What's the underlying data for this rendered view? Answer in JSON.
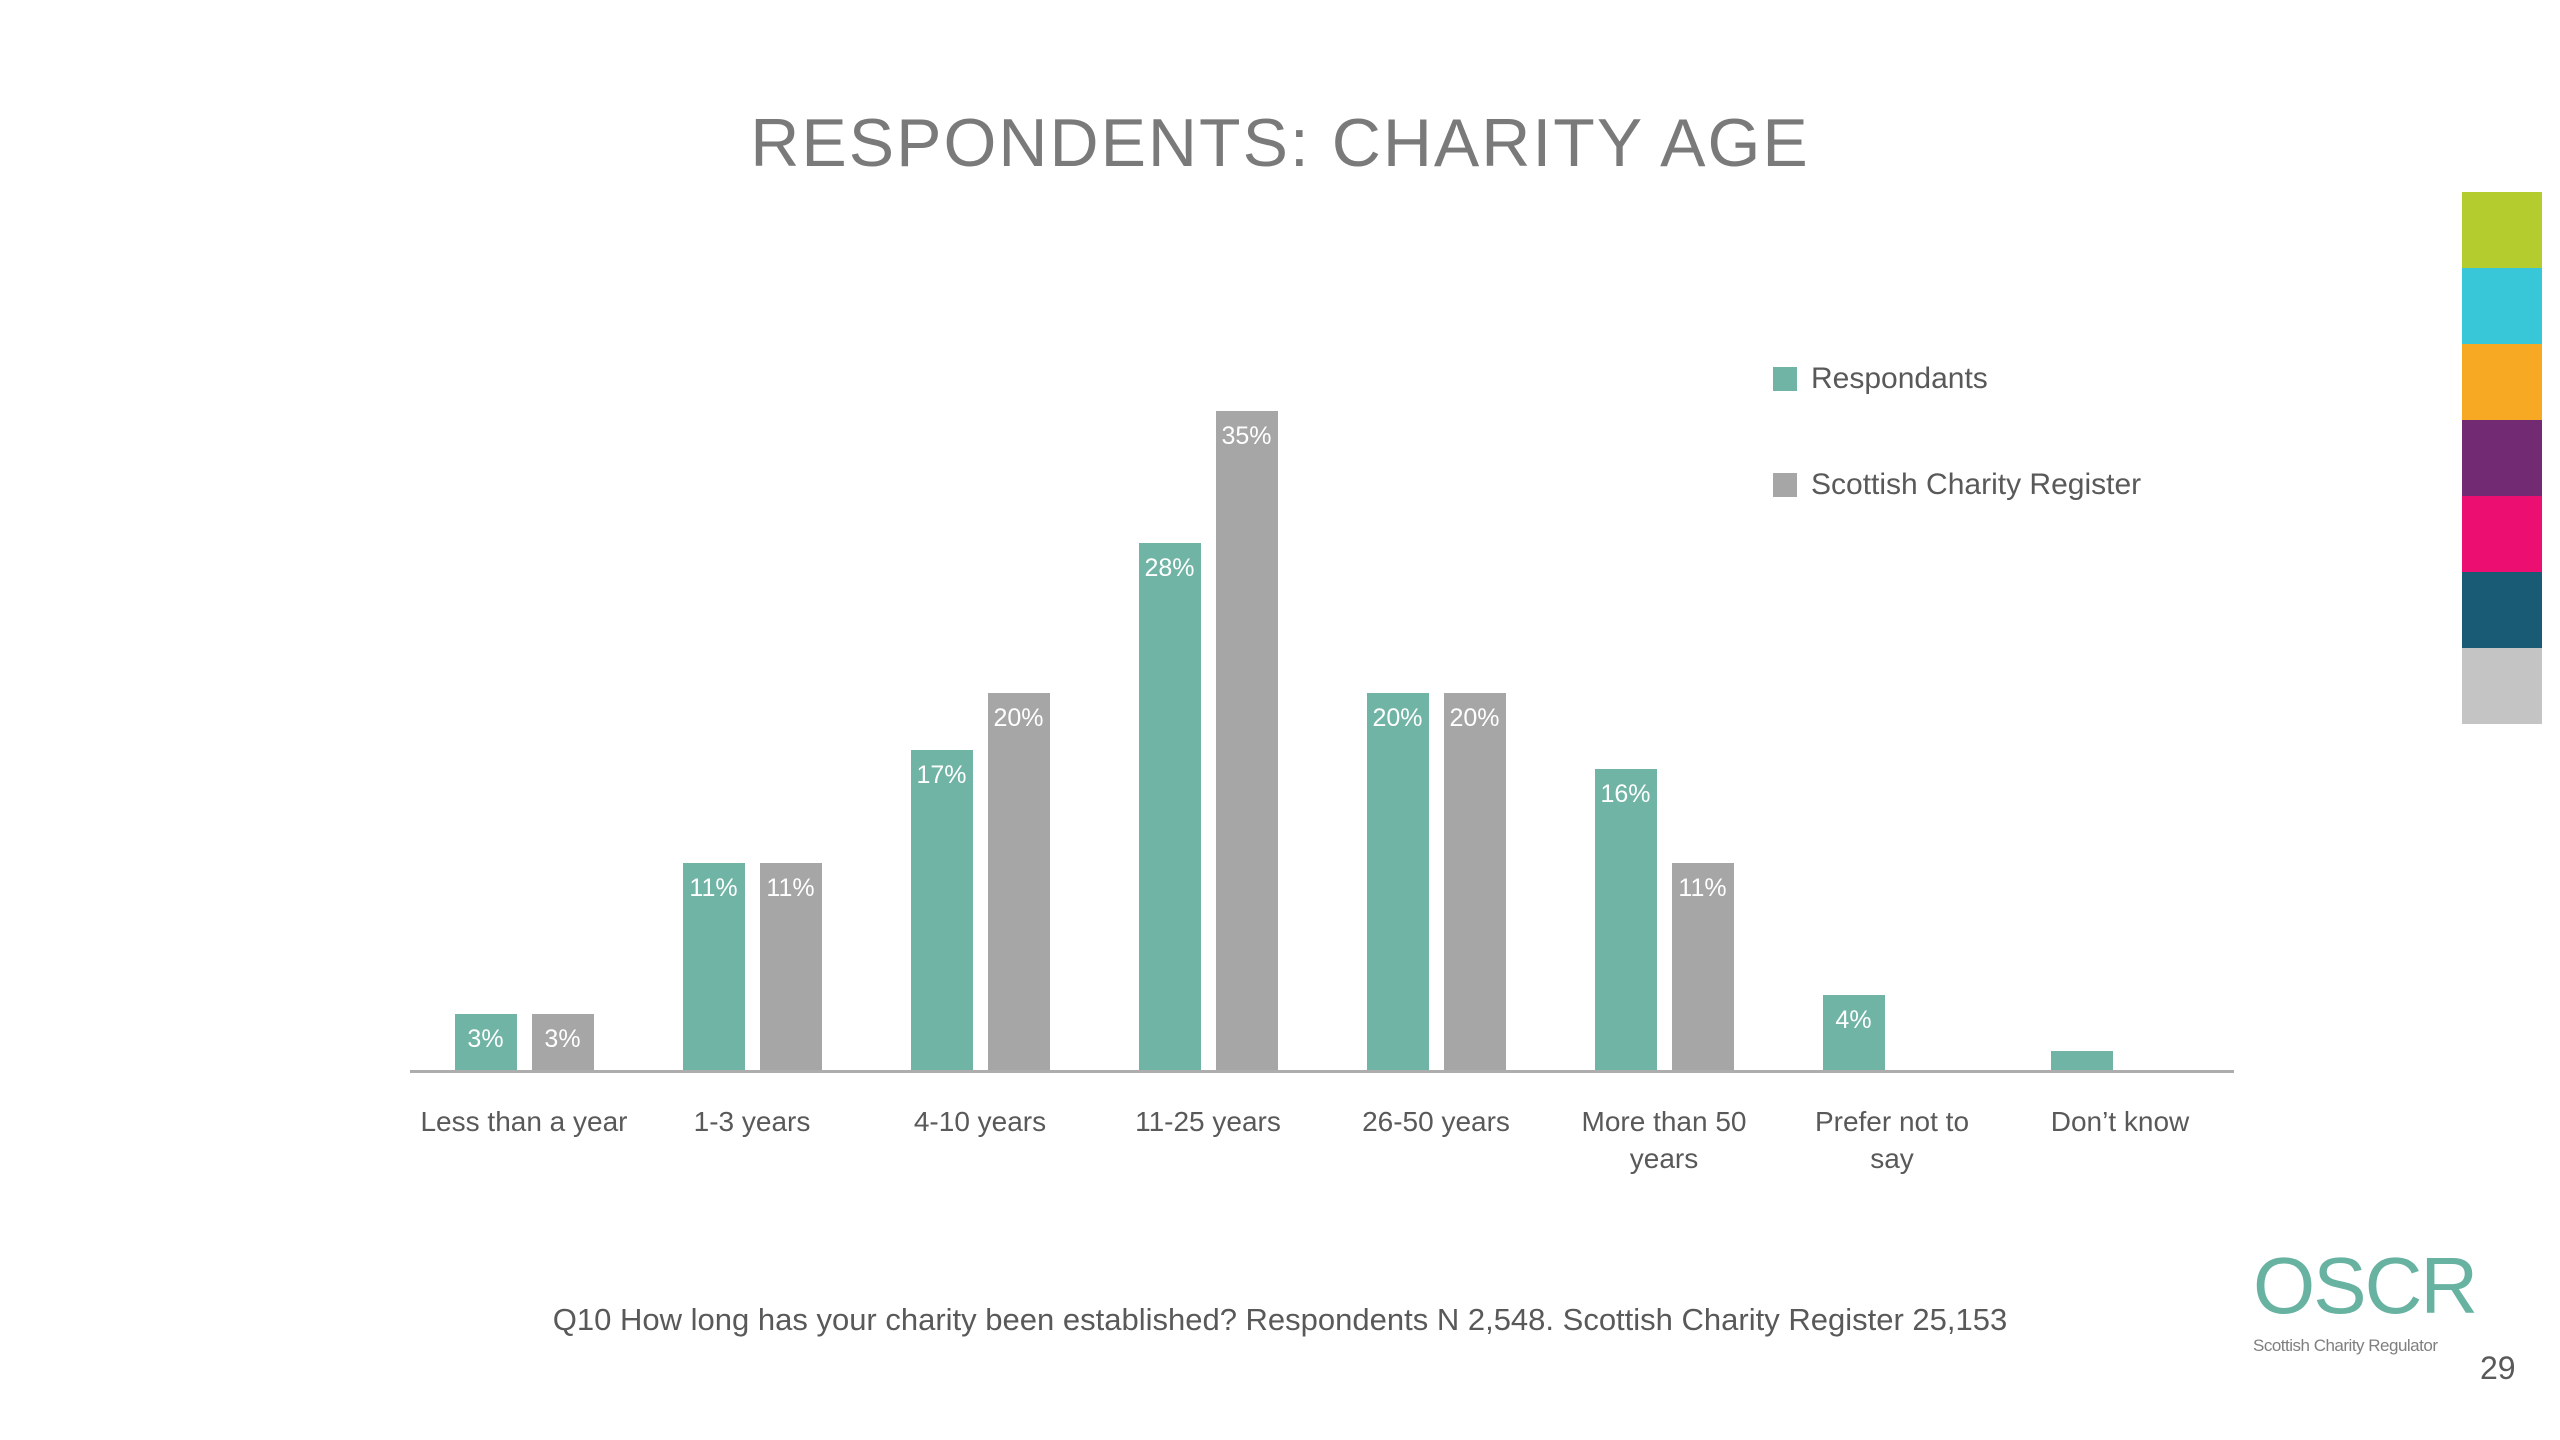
{
  "slide": {
    "title": "RESPONDENTS: CHARITY AGE",
    "footnote": "Q10 How long has your charity been established? Respondents N 2,548. Scottish Charity Register 25,153",
    "page_number": "29"
  },
  "logo": {
    "text": "OSCR",
    "tagline": "Scottish Charity Regulator",
    "color": "#67B2A1"
  },
  "palette_strip": [
    "#B5CC2F",
    "#38C6D9",
    "#F7A923",
    "#722A72",
    "#EC0E70",
    "#195B75",
    "#C4C4C4"
  ],
  "chart_data": {
    "type": "bar",
    "title": "RESPONDENTS: CHARITY AGE",
    "xlabel": "",
    "ylabel": "",
    "value_unit": "%",
    "ylim": [
      0,
      37
    ],
    "grid": false,
    "legend_position": "right",
    "axis_line_color": "#ADADAD",
    "categories": [
      "Less than a year",
      "1-3 years",
      "4-10 years",
      "11-25 years",
      "26-50 years",
      "More than 50 years",
      "Prefer not to say",
      "Don't know"
    ],
    "category_display": [
      "Less than a year",
      "1-3 years",
      "4-10 years",
      "11-25 years",
      "26-50 years",
      "More than 50\nyears",
      "Prefer not to\nsay",
      "Don’t know"
    ],
    "series": [
      {
        "name": "Respondants",
        "color": "#70B4A5",
        "values": [
          3,
          11,
          17,
          28,
          20,
          16,
          4,
          1
        ],
        "labels": [
          "3%",
          "11%",
          "17%",
          "28%",
          "20%",
          "16%",
          "4%",
          ""
        ]
      },
      {
        "name": "Scottish Charity Register",
        "color": "#A6A6A6",
        "values": [
          3,
          11,
          20,
          35,
          20,
          11,
          0,
          0
        ],
        "labels": [
          "3%",
          "11%",
          "20%",
          "35%",
          "20%",
          "11%",
          "",
          ""
        ]
      }
    ]
  }
}
